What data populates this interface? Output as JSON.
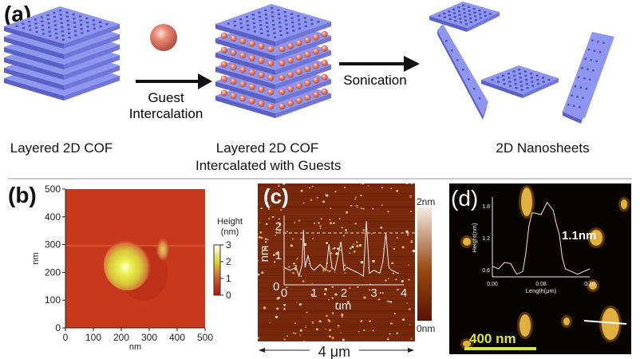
{
  "panel_a": {
    "label": "(a)",
    "arrow1_text": [
      "Guest",
      "Intercalation"
    ],
    "arrow2_text": "Sonication",
    "captions": {
      "left": "Layered 2D COF",
      "middle": [
        "Layered 2D COF",
        "Intercalated with Guests"
      ],
      "right": "2D Nanosheets"
    },
    "colors": {
      "sheet": "#8f96f0",
      "sheet_dark": "#5b61c4",
      "guest": "#e8806a"
    }
  },
  "panel_b": {
    "label": "(b)",
    "xlabel": "nm",
    "ylabel": "nm",
    "xticks": [
      "0",
      "100",
      "200",
      "300",
      "400",
      "500"
    ],
    "yticks": [
      "0",
      "100",
      "200",
      "300",
      "400",
      "500"
    ],
    "colorbar_title": [
      "Height",
      "(nm)"
    ],
    "colorbar_ticks": [
      "0",
      "1",
      "2",
      "3"
    ]
  },
  "panel_c": {
    "label": "(c)",
    "colorbar_max": "2nm",
    "colorbar_min": "0nm",
    "scale_text": "4 μm",
    "inset": {
      "xlabel": "um",
      "ylabel": "nm",
      "xticks": [
        "0",
        "1",
        "2",
        "3",
        "4"
      ],
      "yticks": [
        "1",
        "2"
      ],
      "profile_x_um": [
        0,
        0.2,
        0.4,
        0.5,
        0.6,
        0.65,
        0.7,
        0.8,
        0.9,
        1.0,
        1.2,
        1.4,
        1.5,
        1.6,
        1.7,
        1.9,
        2.0,
        2.1,
        2.3,
        2.5,
        2.65,
        2.75,
        2.85,
        3.0,
        3.2,
        3.3,
        3.4,
        3.5,
        3.6,
        3.8
      ],
      "profile_nm": [
        0.6,
        0.5,
        0.6,
        0.3,
        0.7,
        1.9,
        0.6,
        1.0,
        0.6,
        0.5,
        0.7,
        0.5,
        1.4,
        0.6,
        0.5,
        1.5,
        0.5,
        0.6,
        0.5,
        0.4,
        0.3,
        2.2,
        0.4,
        0.5,
        0.4,
        0.8,
        1.8,
        0.6,
        0.5,
        0.4
      ]
    }
  },
  "panel_d": {
    "label": "(d)",
    "scale_text": "400 nm",
    "annotation": "1.1nm",
    "inset": {
      "xlabel": "Length(μm)",
      "ylabel": "Height(nm)",
      "xticks": [
        "0.00",
        "0.08",
        "0.16"
      ],
      "yticks": [
        "0.6",
        "1.2",
        "1.8"
      ],
      "profile_x_um": [
        0,
        0.01,
        0.02,
        0.03,
        0.04,
        0.05,
        0.055,
        0.06,
        0.065,
        0.07,
        0.08,
        0.09,
        0.1,
        0.105,
        0.11,
        0.115,
        0.12,
        0.13,
        0.14,
        0.15,
        0.16
      ],
      "profile_nm": [
        0.65,
        0.6,
        0.72,
        0.7,
        0.5,
        0.55,
        0.9,
        1.4,
        1.65,
        1.65,
        1.62,
        1.85,
        1.7,
        1.45,
        1.25,
        0.8,
        0.6,
        0.55,
        0.5,
        0.55,
        0.6
      ]
    }
  }
}
